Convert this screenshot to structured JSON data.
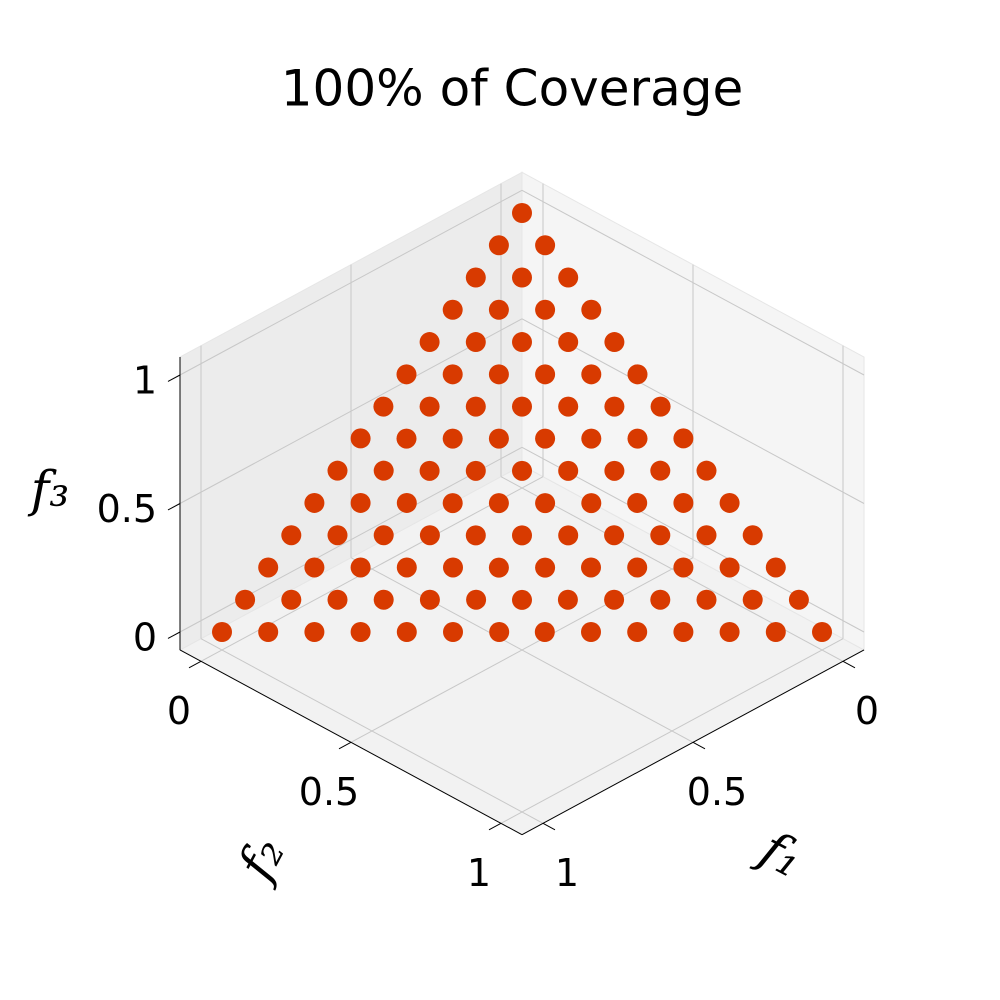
{
  "chart_data": {
    "type": "scatter3d",
    "title": "100% of Coverage",
    "xlabel": "f₁",
    "ylabel": "f₂",
    "zlabel": "f₃",
    "xlim": [
      -0.07,
      1.07
    ],
    "ylim": [
      -0.07,
      1.07
    ],
    "zlim": [
      -0.07,
      1.07
    ],
    "xticks": [
      0,
      0.5,
      1
    ],
    "yticks": [
      0,
      0.5,
      1
    ],
    "zticks": [
      0,
      0.5,
      1
    ],
    "grid": true,
    "color": "#d83a00",
    "x": [
      1,
      0.923,
      0.846,
      0.769,
      0.692,
      0.615,
      0.538,
      0.462,
      0.385,
      0.308,
      0.231,
      0.154,
      0.077,
      0,
      0.923,
      0.846,
      0.769,
      0.692,
      0.615,
      0.538,
      0.462,
      0.385,
      0.308,
      0.231,
      0.154,
      0.077,
      0,
      0.846,
      0.769,
      0.692,
      0.615,
      0.538,
      0.462,
      0.385,
      0.308,
      0.231,
      0.154,
      0.077,
      0,
      0.769,
      0.692,
      0.615,
      0.538,
      0.462,
      0.385,
      0.308,
      0.231,
      0.154,
      0.077,
      0,
      0.692,
      0.615,
      0.538,
      0.462,
      0.385,
      0.308,
      0.231,
      0.154,
      0.077,
      0,
      0.615,
      0.538,
      0.462,
      0.385,
      0.308,
      0.231,
      0.154,
      0.077,
      0,
      0.538,
      0.462,
      0.385,
      0.308,
      0.231,
      0.154,
      0.077,
      0,
      0.462,
      0.385,
      0.308,
      0.231,
      0.154,
      0.077,
      0,
      0.385,
      0.308,
      0.231,
      0.154,
      0.077,
      0,
      0.308,
      0.231,
      0.154,
      0.077,
      0,
      0.231,
      0.154,
      0.077,
      0,
      0.154,
      0.077,
      0,
      0.077,
      0,
      0
    ],
    "y": [
      0,
      0.077,
      0.154,
      0.231,
      0.308,
      0.385,
      0.462,
      0.538,
      0.615,
      0.692,
      0.769,
      0.846,
      0.923,
      1,
      0,
      0.077,
      0.154,
      0.231,
      0.308,
      0.385,
      0.462,
      0.538,
      0.615,
      0.692,
      0.769,
      0.846,
      0.923,
      0,
      0.077,
      0.154,
      0.231,
      0.308,
      0.385,
      0.462,
      0.538,
      0.615,
      0.692,
      0.769,
      0.846,
      0,
      0.077,
      0.154,
      0.231,
      0.308,
      0.385,
      0.462,
      0.538,
      0.615,
      0.692,
      0.769,
      0,
      0.077,
      0.154,
      0.231,
      0.308,
      0.385,
      0.462,
      0.538,
      0.615,
      0.692,
      0,
      0.077,
      0.154,
      0.231,
      0.308,
      0.385,
      0.462,
      0.538,
      0.615,
      0,
      0.077,
      0.154,
      0.231,
      0.308,
      0.385,
      0.462,
      0.538,
      0,
      0.077,
      0.154,
      0.231,
      0.308,
      0.385,
      0.462,
      0,
      0.077,
      0.154,
      0.231,
      0.308,
      0.385,
      0,
      0.077,
      0.154,
      0.231,
      0.308,
      0,
      0.077,
      0.154,
      0.231,
      0,
      0.077,
      0.154,
      0,
      0.077,
      0
    ],
    "z": [
      0,
      0,
      0,
      0,
      0,
      0,
      0,
      0,
      0,
      0,
      0,
      0,
      0,
      0,
      0.077,
      0.077,
      0.077,
      0.077,
      0.077,
      0.077,
      0.077,
      0.077,
      0.077,
      0.077,
      0.077,
      0.077,
      0.077,
      0.154,
      0.154,
      0.154,
      0.154,
      0.154,
      0.154,
      0.154,
      0.154,
      0.154,
      0.154,
      0.154,
      0.154,
      0.231,
      0.231,
      0.231,
      0.231,
      0.231,
      0.231,
      0.231,
      0.231,
      0.231,
      0.231,
      0.231,
      0.308,
      0.308,
      0.308,
      0.308,
      0.308,
      0.308,
      0.308,
      0.308,
      0.308,
      0.308,
      0.385,
      0.385,
      0.385,
      0.385,
      0.385,
      0.385,
      0.385,
      0.385,
      0.385,
      0.462,
      0.462,
      0.462,
      0.462,
      0.462,
      0.462,
      0.462,
      0.462,
      0.538,
      0.538,
      0.538,
      0.538,
      0.538,
      0.538,
      0.538,
      0.615,
      0.615,
      0.615,
      0.615,
      0.615,
      0.615,
      0.692,
      0.692,
      0.692,
      0.692,
      0.692,
      0.769,
      0.769,
      0.769,
      0.769,
      0.846,
      0.846,
      0.846,
      0.923,
      0.923,
      1
    ]
  }
}
